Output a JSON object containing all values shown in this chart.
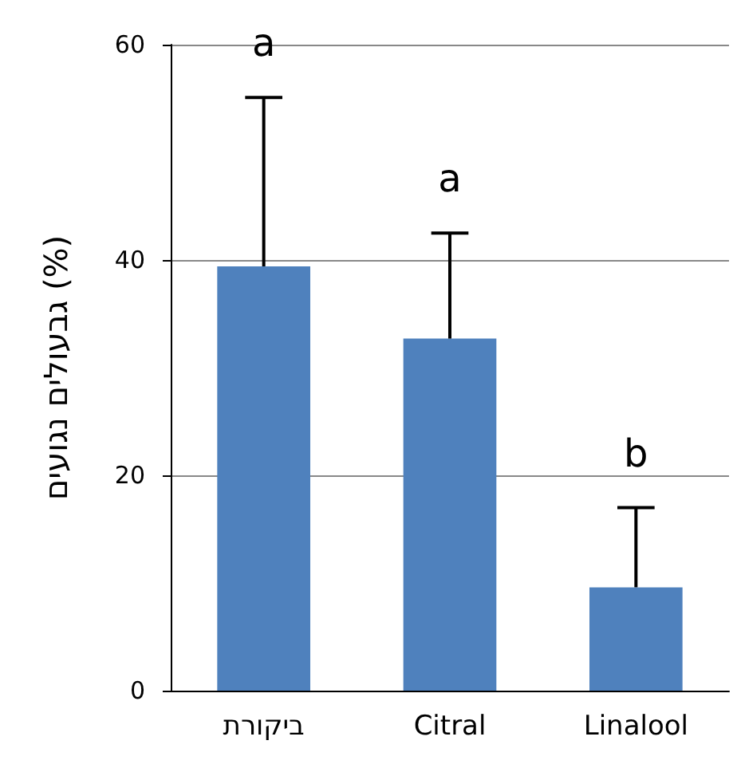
{
  "chart_data": {
    "type": "bar",
    "ylabel": "גבעולים נגועים (%)",
    "categories": [
      "ביקורת",
      "Citral",
      "Linalool"
    ],
    "values": [
      39.4,
      32.7,
      9.6
    ],
    "color": "#4f81bd",
    "errors": [
      [
        39.4,
        55.1
      ],
      [
        32.7,
        42.5
      ],
      [
        9.6,
        17.0
      ]
    ],
    "ylim": [
      0,
      60
    ],
    "yticks": [
      0,
      20,
      40,
      60
    ],
    "grid": "y",
    "annotations": [
      {
        "text": "a",
        "x": "ביקורת",
        "y": 55.1
      },
      {
        "text": "a",
        "x": "Citral",
        "y": 42.5
      },
      {
        "text": "b",
        "x": "Linalool",
        "y": 17.0
      }
    ]
  }
}
